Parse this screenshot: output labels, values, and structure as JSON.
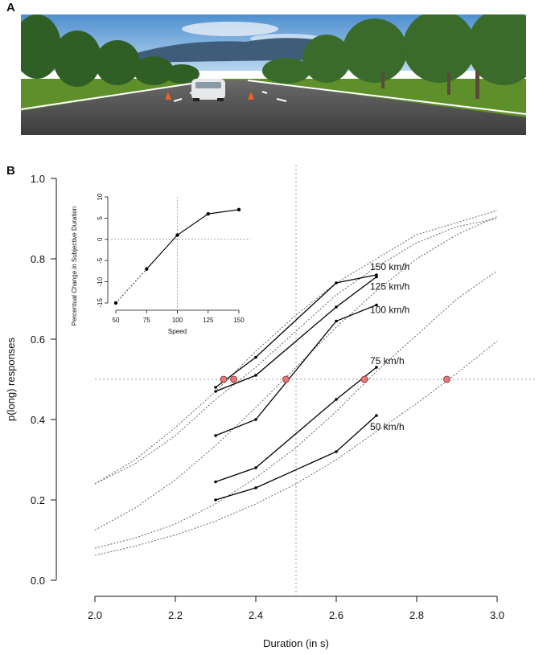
{
  "panels": {
    "a_label": "A",
    "b_label": "B"
  },
  "scene": {
    "sky_color": "#6fa6d8",
    "grass_color": "#5f8f2a",
    "road_color": "#4a4a4a",
    "tree_color": "#2f5f24",
    "cone_color": "#e8622a",
    "car_color": "#e6e8ea"
  },
  "chart_data": [
    {
      "type": "line",
      "xlabel": "Duration (in s)",
      "ylabel": "p(long) responses",
      "xlim": [
        2.0,
        3.0
      ],
      "ylim": [
        0.0,
        1.0
      ],
      "xticks": [
        "2.0",
        "2.2",
        "2.4",
        "2.6",
        "2.8",
        "3.0"
      ],
      "yticks": [
        "0.0",
        "0.2",
        "0.4",
        "0.6",
        "0.8",
        "1.0"
      ],
      "reference_lines": {
        "x": 2.5,
        "y": 0.5
      },
      "series": [
        {
          "name": "150 km/h",
          "x": [
            2.3,
            2.4,
            2.6,
            2.7
          ],
          "y": [
            0.48,
            0.555,
            0.74,
            0.76
          ],
          "fit": {
            "x": [
              2.0,
              2.1,
              2.2,
              2.3,
              2.4,
              2.5,
              2.6,
              2.7,
              2.8,
              2.9,
              3.0
            ],
            "y": [
              0.24,
              0.3,
              0.38,
              0.47,
              0.57,
              0.66,
              0.74,
              0.8,
              0.86,
              0.89,
              0.92
            ]
          },
          "pse": 2.32
        },
        {
          "name": "125 km/h",
          "x": [
            2.3,
            2.4,
            2.6,
            2.7
          ],
          "y": [
            0.47,
            0.51,
            0.68,
            0.755
          ],
          "fit": {
            "x": [
              2.0,
              2.1,
              2.2,
              2.3,
              2.4,
              2.5,
              2.6,
              2.7,
              2.8,
              2.9,
              3.0
            ],
            "y": [
              0.24,
              0.29,
              0.36,
              0.45,
              0.53,
              0.62,
              0.71,
              0.78,
              0.84,
              0.88,
              0.9
            ]
          },
          "pse": 2.345
        },
        {
          "name": "100 km/h",
          "x": [
            2.3,
            2.4,
            2.6,
            2.7
          ],
          "y": [
            0.36,
            0.4,
            0.645,
            0.685
          ],
          "fit": {
            "x": [
              2.0,
              2.1,
              2.2,
              2.3,
              2.4,
              2.5,
              2.6,
              2.7,
              2.8,
              2.9,
              3.0
            ],
            "y": [
              0.125,
              0.18,
              0.25,
              0.335,
              0.43,
              0.53,
              0.63,
              0.72,
              0.8,
              0.86,
              0.905
            ]
          },
          "pse": 2.475
        },
        {
          "name": "75 km/h",
          "x": [
            2.3,
            2.4,
            2.6,
            2.7
          ],
          "y": [
            0.245,
            0.28,
            0.45,
            0.53
          ],
          "fit": {
            "x": [
              2.0,
              2.1,
              2.2,
              2.3,
              2.4,
              2.5,
              2.6,
              2.7,
              2.8,
              2.9,
              3.0
            ],
            "y": [
              0.08,
              0.105,
              0.14,
              0.19,
              0.255,
              0.33,
              0.42,
              0.52,
              0.61,
              0.7,
              0.77
            ]
          },
          "pse": 2.67
        },
        {
          "name": "50 km/h",
          "x": [
            2.3,
            2.4,
            2.6,
            2.7
          ],
          "y": [
            0.2,
            0.23,
            0.32,
            0.41
          ],
          "fit": {
            "x": [
              2.0,
              2.1,
              2.2,
              2.3,
              2.4,
              2.5,
              2.6,
              2.7,
              2.8,
              2.9,
              3.0
            ],
            "y": [
              0.062,
              0.085,
              0.113,
              0.147,
              0.19,
              0.24,
              0.3,
              0.37,
              0.44,
              0.515,
              0.595
            ]
          },
          "pse": 2.875
        }
      ]
    },
    {
      "type": "line",
      "xlabel": "Speed",
      "ylabel": "Percentual Change in Subjective Duration",
      "xlim": [
        50,
        150
      ],
      "ylim": [
        -15,
        10
      ],
      "xticks": [
        "50",
        "75",
        "100",
        "125",
        "150"
      ],
      "yticks": [
        "-15",
        "-10",
        "-5",
        "0",
        "5",
        "10"
      ],
      "reference_lines": {
        "x": 100,
        "y": 0
      },
      "x": [
        50,
        75,
        100,
        125,
        150
      ],
      "y": [
        -15,
        -7,
        1,
        6,
        7
      ]
    }
  ]
}
